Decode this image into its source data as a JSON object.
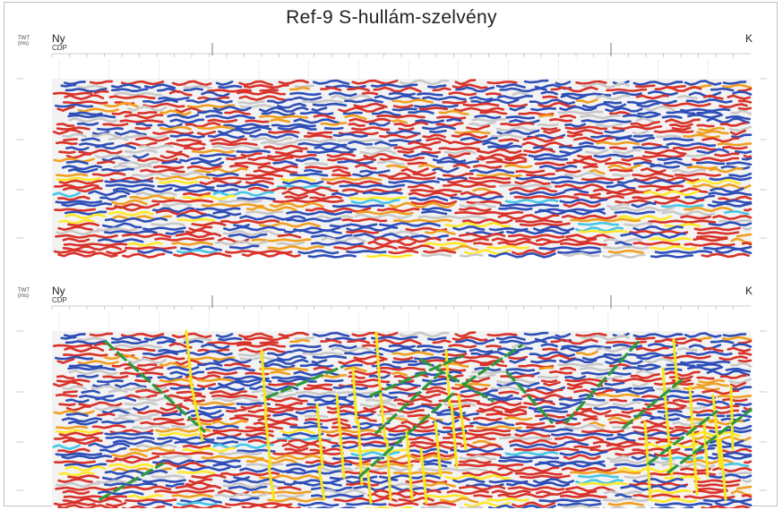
{
  "title": "Ref-9 S-hullám-szelvény",
  "axis": {
    "twt": "TWT",
    "unit": "(ms)",
    "cdp": "CDP",
    "west": "Ny",
    "east": "K"
  },
  "colors": {
    "red": "#d8322a",
    "blue": "#2f4fb8",
    "yellow": "#ffe92a",
    "orange": "#f0a020",
    "cyan": "#46c6e8",
    "green_fault": "#2e9a3c",
    "yellow_fault": "#f7e61a",
    "background": "#f3f3f3"
  },
  "panels": [
    {
      "id": "uninterpreted"
    },
    {
      "id": "interpreted"
    }
  ]
}
